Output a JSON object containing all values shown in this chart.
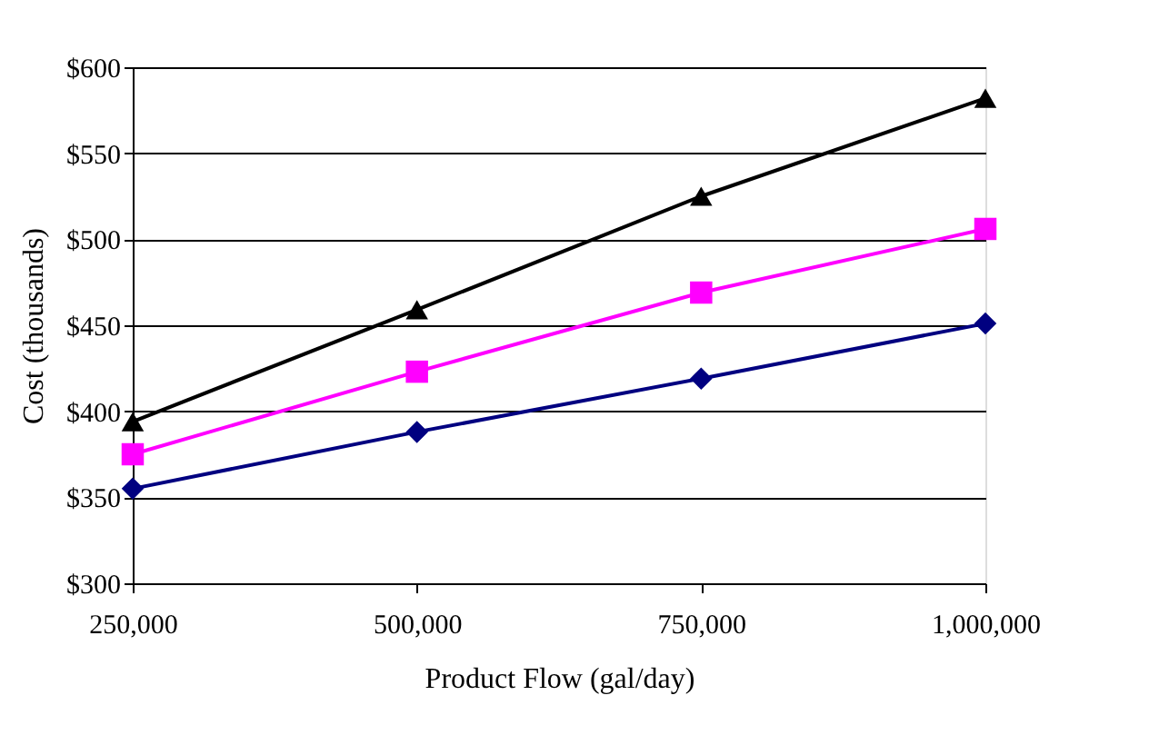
{
  "chart_data": {
    "type": "line",
    "xlabel": "Product Flow (gal/day)",
    "ylabel": "Cost (thousands)",
    "x": [
      250000,
      500000,
      750000,
      1000000
    ],
    "series": [
      {
        "color": "#000000",
        "marker": "triangle",
        "values": [
          394,
          459,
          525,
          582
        ]
      },
      {
        "color": "#ff00ff",
        "marker": "square",
        "values": [
          375,
          423,
          469,
          506
        ]
      },
      {
        "color": "#000080",
        "marker": "diamond",
        "values": [
          355,
          388,
          419,
          451
        ]
      }
    ],
    "xlim": [
      250000,
      1000000
    ],
    "xticks": [
      {
        "value": 250000,
        "label": "250,000"
      },
      {
        "value": 500000,
        "label": "500,000"
      },
      {
        "value": 750000,
        "label": "750,000"
      },
      {
        "value": 1000000,
        "label": "1,000,000"
      }
    ],
    "ylim": [
      300,
      600
    ],
    "yticks": [
      {
        "value": 300,
        "label": "$300"
      },
      {
        "value": 350,
        "label": "$350"
      },
      {
        "value": 400,
        "label": "$400"
      },
      {
        "value": 450,
        "label": "$450"
      },
      {
        "value": 500,
        "label": "$500"
      },
      {
        "value": 550,
        "label": "$550"
      },
      {
        "value": 600,
        "label": "$600"
      }
    ],
    "grid": "y",
    "line_style": "solid"
  }
}
